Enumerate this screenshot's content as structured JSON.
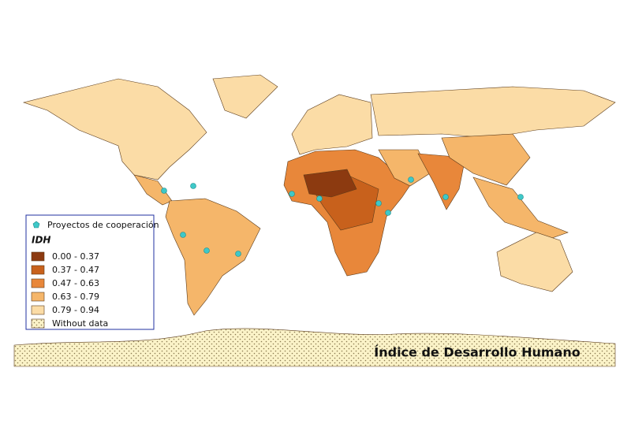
{
  "map": {
    "title": "Índice de Desarrollo Humano",
    "legend": {
      "points_label": "Proyectos de cooperación",
      "title": "IDH",
      "classes": [
        {
          "label": "0.00 - 0.37",
          "color": "#8c3a10"
        },
        {
          "label": "0.37 - 0.47",
          "color": "#c8611c"
        },
        {
          "label": "0.47 - 0.63",
          "color": "#e8873a"
        },
        {
          "label": "0.63 - 0.79",
          "color": "#f5b66a"
        },
        {
          "label": "0.79 - 0.94",
          "color": "#fbdca6"
        }
      ],
      "no_data": "Without data"
    }
  }
}
